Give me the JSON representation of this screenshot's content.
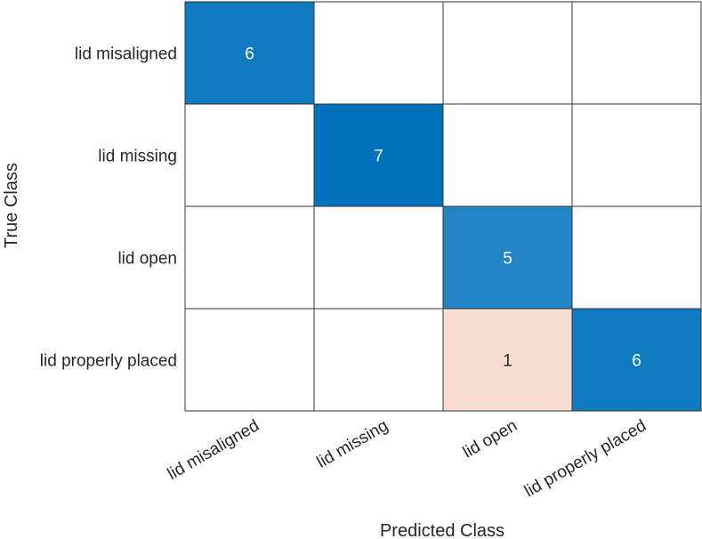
{
  "chart_data": {
    "type": "heatmap",
    "title": "",
    "xlabel": "Predicted Class",
    "ylabel": "True Class",
    "row_labels": [
      "lid misaligned",
      "lid missing",
      "lid open",
      "lid properly placed"
    ],
    "col_labels": [
      "lid misaligned",
      "lid missing",
      "lid open",
      "lid properly placed"
    ],
    "values": [
      [
        6,
        0,
        0,
        0
      ],
      [
        0,
        7,
        0,
        0
      ],
      [
        0,
        0,
        5,
        0
      ],
      [
        0,
        0,
        1,
        6
      ]
    ],
    "correct_color_max": "#0072bd",
    "incorrect_color_max": "#d95319",
    "empty_color": "#ffffff",
    "grid_color": "#333333"
  }
}
